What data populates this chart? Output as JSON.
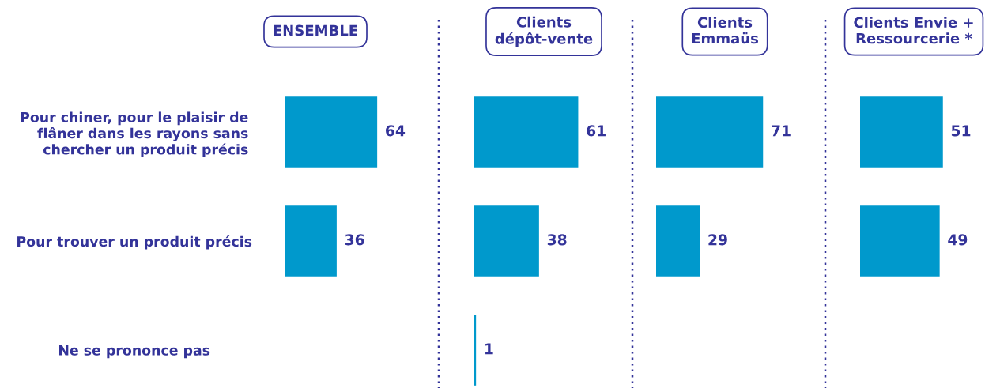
{
  "chart_data": [
    {
      "type": "bar",
      "orientation": "horizontal",
      "title": "ENSEMBLE",
      "categories": [
        "Pour chiner, pour le plaisir de\nflâner dans les rayons sans\nchercher un produit précis",
        "Pour trouver un produit précis",
        "Ne se prononce pas"
      ],
      "values": [
        64,
        36,
        null
      ],
      "color": "#0099cc",
      "data_labels": true,
      "tick_labels": "y"
    },
    {
      "type": "bar",
      "orientation": "horizontal",
      "title": "Clients\ndépôt-vente",
      "categories": [
        null,
        null,
        null
      ],
      "values": [
        61,
        38,
        1
      ],
      "color": "#0099cc",
      "data_labels": true,
      "tick_labels": false
    },
    {
      "type": "bar",
      "orientation": "horizontal",
      "title": "Clients\nEmmaüs",
      "categories": [
        null,
        null,
        null
      ],
      "values": [
        71,
        29,
        null
      ],
      "color": "#0099cc",
      "data_labels": true,
      "tick_labels": false
    },
    {
      "type": "bar",
      "orientation": "horizontal",
      "title": "Clients Envie +\nRessourcerie *",
      "categories": [
        null,
        null,
        null
      ],
      "values": [
        51,
        49,
        null
      ],
      "color": "#0099cc",
      "data_labels": true,
      "tick_labels": false
    }
  ]
}
